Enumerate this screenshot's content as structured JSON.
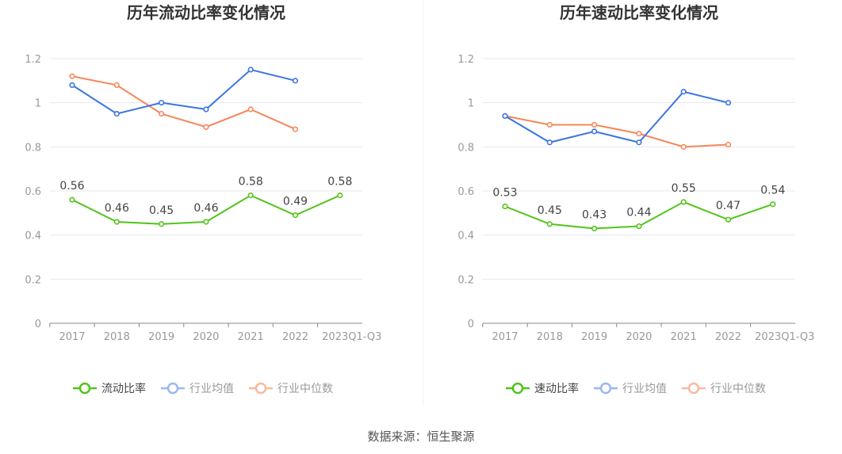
{
  "source": "数据来源：恒生聚源",
  "colors": {
    "main": "#52c41a",
    "avg": "#3b74e0",
    "median": "#f5875a",
    "avg_legend": "#9bb7f0",
    "median_legend": "#f8b9a0",
    "grid": "#e6e9f0",
    "axis": "#888"
  },
  "chart_data": [
    {
      "type": "line",
      "title": "历年流动比率变化情况",
      "categories": [
        "2017",
        "2018",
        "2019",
        "2020",
        "2021",
        "2022",
        "2023Q1-Q3"
      ],
      "ylim": [
        0,
        1.2
      ],
      "yticks": [
        "0",
        "0.2",
        "0.4",
        "0.6",
        "0.8",
        "1",
        "1.2"
      ],
      "legend_position": "bottom",
      "series": [
        {
          "name": "流动比率",
          "values": [
            0.56,
            0.46,
            0.45,
            0.46,
            0.58,
            0.49,
            0.58
          ],
          "labels": [
            "0.56",
            "0.46",
            "0.45",
            "0.46",
            "0.58",
            "0.49",
            "0.58"
          ]
        },
        {
          "name": "行业均值",
          "values": [
            1.08,
            0.95,
            1.0,
            0.97,
            1.15,
            1.1,
            null
          ]
        },
        {
          "name": "行业中位数",
          "values": [
            1.12,
            1.08,
            0.95,
            0.89,
            0.97,
            0.88,
            null
          ]
        }
      ]
    },
    {
      "type": "line",
      "title": "历年速动比率变化情况",
      "categories": [
        "2017",
        "2018",
        "2019",
        "2020",
        "2021",
        "2022",
        "2023Q1-Q3"
      ],
      "ylim": [
        0,
        1.2
      ],
      "yticks": [
        "0",
        "0.2",
        "0.4",
        "0.6",
        "0.8",
        "1",
        "1.2"
      ],
      "legend_position": "bottom",
      "series": [
        {
          "name": "速动比率",
          "values": [
            0.53,
            0.45,
            0.43,
            0.44,
            0.55,
            0.47,
            0.54
          ],
          "labels": [
            "0.53",
            "0.45",
            "0.43",
            "0.44",
            "0.55",
            "0.47",
            "0.54"
          ]
        },
        {
          "name": "行业均值",
          "values": [
            0.94,
            0.82,
            0.87,
            0.82,
            1.05,
            1.0,
            null
          ]
        },
        {
          "name": "行业中位数",
          "values": [
            0.94,
            0.9,
            0.9,
            0.86,
            0.8,
            0.81,
            null
          ]
        }
      ]
    }
  ]
}
